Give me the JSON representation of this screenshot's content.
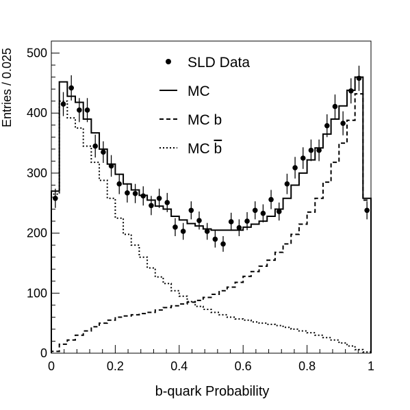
{
  "chart_data": {
    "type": "line",
    "xlabel": "b-quark Probability",
    "ylabel": "Entries / 0.025",
    "xlim": [
      0,
      1
    ],
    "ylim": [
      0,
      520
    ],
    "x_ticks": [
      0,
      0.2,
      0.4,
      0.6,
      0.8,
      1
    ],
    "x_tick_labels": [
      "0",
      "0.2",
      "0.4",
      "0.6",
      "0.8",
      "1"
    ],
    "y_ticks": [
      0,
      100,
      200,
      300,
      400,
      500
    ],
    "y_tick_labels": [
      "0",
      "100",
      "200",
      "300",
      "400",
      "500"
    ],
    "bin_width": 0.025,
    "legend_position": "top-center",
    "grid": false,
    "legend": {
      "data": "SLD Data",
      "mc": "MC",
      "mc_b": "MC b",
      "mc_bbar_prefix": "MC ",
      "mc_bbar_symbol": "b"
    },
    "series": [
      {
        "name": "SLD Data",
        "style": "points",
        "x": [
          0.0125,
          0.0375,
          0.0625,
          0.0875,
          0.1125,
          0.1375,
          0.1625,
          0.1875,
          0.2125,
          0.2375,
          0.2625,
          0.2875,
          0.3125,
          0.3375,
          0.3625,
          0.3875,
          0.4125,
          0.4375,
          0.4625,
          0.4875,
          0.5125,
          0.5375,
          0.5625,
          0.5875,
          0.6125,
          0.6375,
          0.6625,
          0.6875,
          0.7125,
          0.7375,
          0.7625,
          0.7875,
          0.8125,
          0.8375,
          0.8625,
          0.8875,
          0.9125,
          0.9375,
          0.9625,
          0.9875
        ],
        "values": [
          258,
          415,
          442,
          405,
          405,
          345,
          335,
          312,
          282,
          267,
          266,
          262,
          246,
          258,
          251,
          210,
          203,
          238,
          221,
          203,
          190,
          182,
          219,
          209,
          220,
          238,
          233,
          256,
          236,
          282,
          309,
          325,
          338,
          338,
          379,
          411,
          383,
          437,
          458,
          238
        ],
        "errors": [
          16,
          20,
          21,
          20,
          20,
          19,
          18,
          18,
          17,
          16,
          16,
          16,
          16,
          16,
          16,
          15,
          14,
          15,
          15,
          14,
          14,
          13,
          15,
          14,
          15,
          15,
          15,
          16,
          15,
          17,
          18,
          18,
          18,
          18,
          19,
          20,
          20,
          21,
          21,
          15
        ]
      },
      {
        "name": "MC",
        "style": "solid",
        "values": [
          270,
          452,
          428,
          418,
          390,
          367,
          340,
          315,
          298,
          282,
          272,
          263,
          255,
          245,
          240,
          228,
          222,
          216,
          212,
          207,
          205,
          205,
          205,
          205,
          210,
          215,
          220,
          228,
          240,
          258,
          280,
          300,
          322,
          342,
          365,
          390,
          412,
          438,
          460,
          258
        ]
      },
      {
        "name": "MC b",
        "style": "dashed",
        "values": [
          3,
          15,
          22,
          30,
          37,
          44,
          50,
          55,
          60,
          62,
          64,
          66,
          68,
          72,
          76,
          79,
          82,
          85,
          88,
          93,
          98,
          104,
          110,
          118,
          128,
          136,
          145,
          155,
          168,
          182,
          198,
          215,
          235,
          258,
          285,
          318,
          350,
          388,
          432,
          255
        ]
      },
      {
        "name": "MC b̄",
        "style": "dotted",
        "values": [
          265,
          420,
          392,
          375,
          345,
          318,
          288,
          258,
          225,
          198,
          180,
          160,
          142,
          127,
          116,
          104,
          95,
          86,
          78,
          73,
          68,
          64,
          60,
          57,
          55,
          52,
          50,
          48,
          46,
          43,
          40,
          37,
          34,
          30,
          26,
          22,
          17,
          12,
          6,
          2
        ]
      }
    ]
  }
}
